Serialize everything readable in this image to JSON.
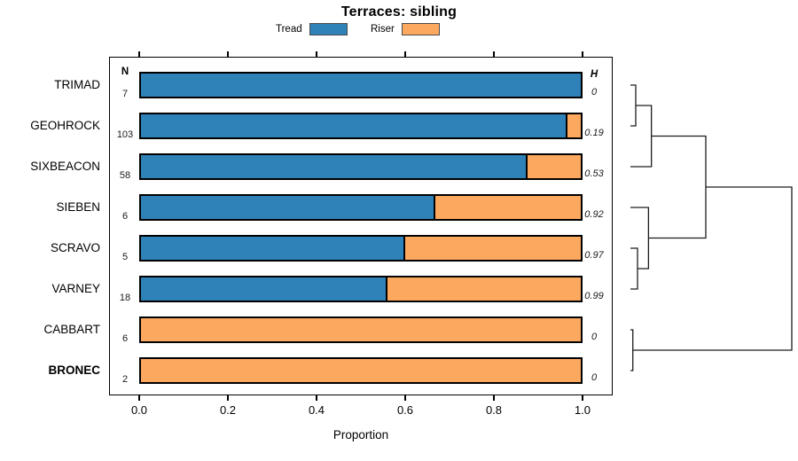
{
  "title": "Terraces: sibling",
  "legend": {
    "items": [
      {
        "label": "Tread",
        "color": "#2E82B7"
      },
      {
        "label": "Riser",
        "color": "#FCA95F"
      }
    ]
  },
  "columns": {
    "n_header": "N",
    "h_header": "H"
  },
  "x_axis": {
    "label": "Proportion",
    "tick_labels": [
      "0.0",
      "0.2",
      "0.4",
      "0.6",
      "0.8",
      "1.0"
    ],
    "tick_values": [
      0,
      0.2,
      0.4,
      0.6,
      0.8,
      1
    ],
    "range": [
      0,
      1
    ]
  },
  "chart_data": {
    "type": "bar",
    "subtype": "horizontal-stacked-proportion",
    "title": "Terraces: sibling",
    "xlabel": "Proportion",
    "xlim": [
      0,
      1
    ],
    "grid": false,
    "legend_position": "top",
    "categories": [
      "TRIMAD",
      "GEOHROCK",
      "SIXBEACON",
      "SIEBEN",
      "SCRAVO",
      "VARNEY",
      "CABBART",
      "BRONEC"
    ],
    "series": [
      {
        "name": "Tread",
        "color": "#2E82B7",
        "values": [
          1.0,
          0.97,
          0.88,
          0.67,
          0.6,
          0.56,
          0,
          0
        ]
      },
      {
        "name": "Riser",
        "color": "#FCA95F",
        "values": [
          0,
          0.03,
          0.12,
          0.33,
          0.4,
          0.44,
          1.0,
          1.0
        ]
      }
    ],
    "row_annotations": {
      "N": [
        "7",
        "103",
        "58",
        "6",
        "5",
        "18",
        "6",
        "2"
      ],
      "H": [
        "0",
        "0.19",
        "0.53",
        "0.92",
        "0.97",
        "0.99",
        "0",
        "0"
      ]
    },
    "bold_categories": [
      "BRONEC"
    ],
    "dendrogram": {
      "side": "right",
      "merges": [
        {
          "id": "m1",
          "children": [
            "leaf:0",
            "leaf:1"
          ],
          "height": 0.033
        },
        {
          "id": "m2",
          "children": [
            "m1",
            "leaf:2"
          ],
          "height": 0.13
        },
        {
          "id": "m5",
          "children": [
            "leaf:4",
            "leaf:5"
          ],
          "height": 0.044
        },
        {
          "id": "m4",
          "children": [
            "leaf:3",
            "m5"
          ],
          "height": 0.112
        },
        {
          "id": "m3",
          "children": [
            "m2",
            "m4"
          ],
          "height": 0.467
        },
        {
          "id": "m6",
          "children": [
            "leaf:6",
            "leaf:7"
          ],
          "height": 0.015
        },
        {
          "id": "root",
          "children": [
            "m3",
            "m6"
          ],
          "height": 1.0
        }
      ]
    }
  }
}
